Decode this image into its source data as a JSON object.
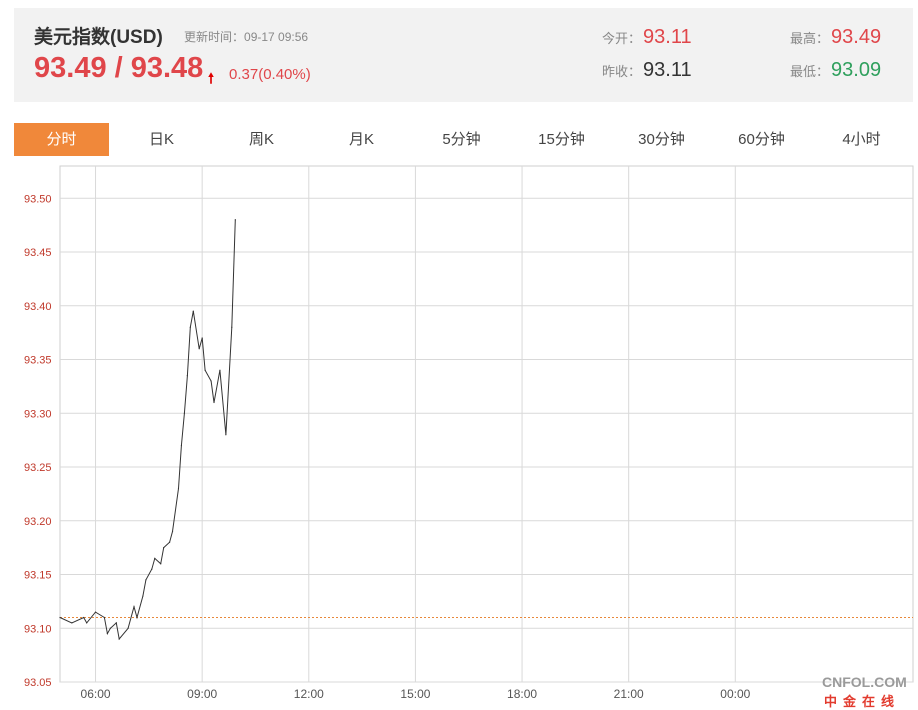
{
  "header": {
    "title": "美元指数(USD)",
    "update_label": "更新时间：",
    "update_time": "09-17 09:56",
    "price_text": "93.49 / 93.48",
    "change_text": "0.37(0.40%)",
    "open_label": "今开：",
    "open_value": "93.11",
    "prev_close_label": "昨收：",
    "prev_close_value": "93.11",
    "high_label": "最高：",
    "high_value": "93.49",
    "low_label": "最低：",
    "low_value": "93.09",
    "up_color": "#e0464a",
    "down_color": "#2fa05d"
  },
  "tabs": [
    {
      "label": "分时",
      "active": true
    },
    {
      "label": "日K"
    },
    {
      "label": "周K"
    },
    {
      "label": "月K"
    },
    {
      "label": "5分钟"
    },
    {
      "label": "15分钟"
    },
    {
      "label": "30分钟"
    },
    {
      "label": "60分钟"
    },
    {
      "label": "4小时"
    }
  ],
  "watermark": {
    "brand": "CNFOL.COM",
    "brand_cn": "中金在线"
  },
  "chart_data": {
    "type": "line",
    "title": "",
    "xlabel": "",
    "ylabel": "",
    "x_ticks": [
      "06:00",
      "09:00",
      "12:00",
      "15:00",
      "18:00",
      "21:00",
      "00:00"
    ],
    "y_ticks": [
      "93.05",
      "93.10",
      "93.15",
      "93.20",
      "93.25",
      "93.30",
      "93.35",
      "93.40",
      "93.45",
      "93.50"
    ],
    "xlim": [
      "05:00",
      "05:00"
    ],
    "ylim": [
      93.05,
      93.53
    ],
    "reference_line": {
      "value": 93.11,
      "label": "",
      "color": "#e8883a"
    },
    "grid": true,
    "series": [
      {
        "color": "#333333",
        "x": [
          "05:00",
          "05:20",
          "05:40",
          "05:45",
          "06:00",
          "06:15",
          "06:20",
          "06:25",
          "06:35",
          "06:40",
          "06:55",
          "07:05",
          "07:10",
          "07:20",
          "07:25",
          "07:35",
          "07:40",
          "07:50",
          "07:55",
          "08:05",
          "08:10",
          "08:20",
          "08:25",
          "08:30",
          "08:35",
          "08:40",
          "08:45",
          "08:55",
          "09:00",
          "09:05",
          "09:15",
          "09:20",
          "09:30",
          "09:40",
          "09:50",
          "09:56"
        ],
        "values": [
          93.11,
          93.105,
          93.11,
          93.105,
          93.115,
          93.11,
          93.095,
          93.1,
          93.105,
          93.09,
          93.1,
          93.12,
          93.11,
          93.13,
          93.145,
          93.155,
          93.165,
          93.16,
          93.175,
          93.18,
          93.19,
          93.23,
          93.27,
          93.3,
          93.335,
          93.38,
          93.395,
          93.36,
          93.37,
          93.34,
          93.33,
          93.31,
          93.34,
          93.28,
          93.38,
          93.48
        ]
      }
    ]
  }
}
